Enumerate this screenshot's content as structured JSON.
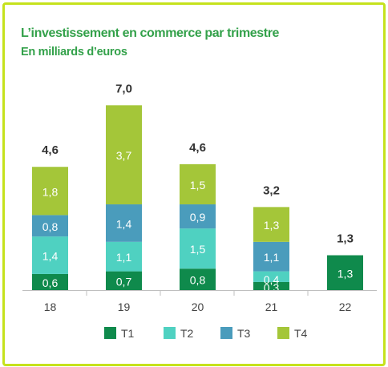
{
  "title": "L’investissement en commerce par trimestre",
  "subtitle": "En milliards d’euros",
  "colors": {
    "frame": "#c5e21c",
    "title": "#33a14a",
    "T1": "#0f8a4c",
    "T2": "#4fd1c1",
    "T3": "#4a9cbc",
    "T4": "#a4c639"
  },
  "chart_data": {
    "type": "bar",
    "stacked": true,
    "categories": [
      "18",
      "19",
      "20",
      "21",
      "22"
    ],
    "series": [
      {
        "name": "T1",
        "values": [
          0.6,
          0.7,
          0.8,
          0.3,
          1.3
        ],
        "labels": [
          "0,6",
          "0,7",
          "0,8",
          "0,3",
          "1,3"
        ]
      },
      {
        "name": "T2",
        "values": [
          1.4,
          1.1,
          1.5,
          0.4,
          null
        ],
        "labels": [
          "1,4",
          "1,1",
          "1,5",
          "0,4",
          ""
        ]
      },
      {
        "name": "T3",
        "values": [
          0.8,
          1.4,
          0.9,
          1.1,
          null
        ],
        "labels": [
          "0,8",
          "1,4",
          "0,9",
          "1,1",
          ""
        ]
      },
      {
        "name": "T4",
        "values": [
          1.8,
          3.7,
          1.5,
          1.3,
          null
        ],
        "labels": [
          "1,8",
          "3,7",
          "1,5",
          "1,3",
          ""
        ]
      }
    ],
    "totals": [
      4.6,
      7.0,
      4.6,
      3.2,
      1.3
    ],
    "total_labels": [
      "4,6",
      "7,0",
      "4,6",
      "3,2",
      "1,3"
    ],
    "ylim": [
      0,
      7.0
    ],
    "grid": false,
    "legend": "bottom"
  }
}
